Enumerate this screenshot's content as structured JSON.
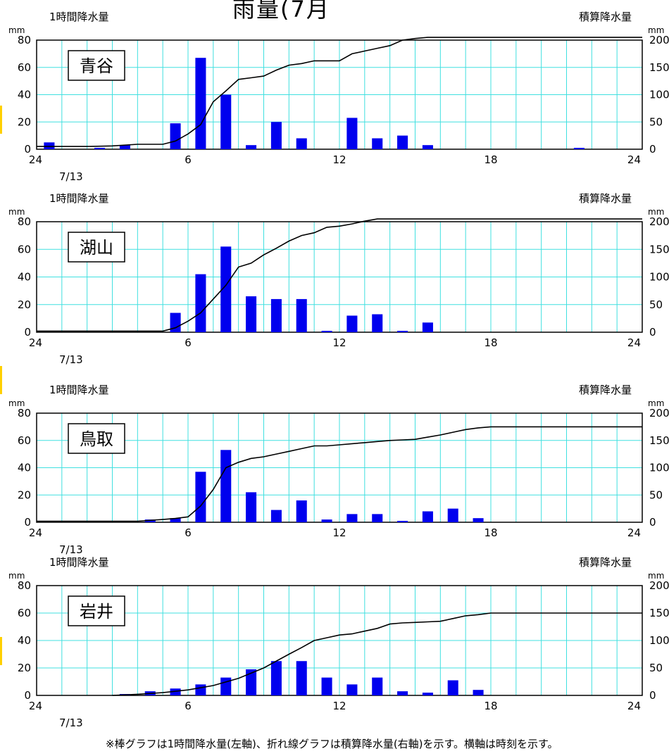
{
  "page_title": "雨量(7月",
  "footnote": "※棒グラフは1時間降水量(左軸)、折れ線グラフは積算降水量(右軸)を示す。横軸は時刻を示す。",
  "colors": {
    "bar": "#0000ee",
    "grid": "#40e0e0",
    "line": "#000000",
    "frame": "#000000"
  },
  "chart_data": [
    {
      "type": "bar",
      "title": "青谷",
      "left_label": "1時間降水量",
      "right_label": "積算降水量",
      "left_unit": "mm",
      "right_unit": "mm",
      "date_label": "7/13",
      "x_ticks": [
        "24",
        "6",
        "12",
        "18",
        "24"
      ],
      "y_left_ticks": [
        "0",
        "20",
        "40",
        "60",
        "80"
      ],
      "y_right_ticks": [
        "0",
        "50",
        "100",
        "150",
        "200"
      ],
      "ylim_left": [
        0,
        80
      ],
      "ylim_right": [
        0,
        200
      ],
      "xlim": [
        0,
        24
      ],
      "grid": true,
      "series": [
        {
          "name": "1時間降水量",
          "axis": "left",
          "x": [
            0.5,
            1,
            2,
            3,
            4,
            5,
            6,
            7,
            8,
            9,
            10,
            11,
            12,
            13,
            14,
            15,
            16,
            17,
            18,
            19,
            20,
            21,
            22,
            23
          ],
          "values": [
            5,
            0,
            0,
            1,
            3,
            0,
            19,
            67,
            40,
            3,
            20,
            8,
            0,
            23,
            8,
            10,
            3,
            0,
            0,
            0,
            0,
            0,
            1,
            0
          ]
        },
        {
          "name": "積算降水量",
          "axis": "right",
          "x": [
            0,
            1,
            2,
            3,
            4,
            5,
            5.5,
            6,
            6.5,
            7,
            7.5,
            8,
            8.5,
            9,
            9.5,
            10,
            10.5,
            11,
            11.5,
            12,
            12.5,
            13,
            13.5,
            14,
            14.5,
            15,
            15.5,
            16,
            24
          ],
          "values": [
            5,
            5,
            5,
            6,
            9,
            9,
            15,
            28,
            45,
            87,
            107,
            128,
            131,
            134,
            145,
            154,
            157,
            162,
            162,
            162,
            175,
            180,
            185,
            190,
            200,
            203,
            205,
            205,
            205
          ]
        }
      ]
    },
    {
      "type": "bar",
      "title": "湖山",
      "left_label": "1時間降水量",
      "right_label": "積算降水量",
      "left_unit": "mm",
      "right_unit": "mm",
      "date_label": "7/13",
      "x_ticks": [
        "24",
        "6",
        "12",
        "18",
        "24"
      ],
      "y_left_ticks": [
        "0",
        "20",
        "40",
        "60",
        "80"
      ],
      "y_right_ticks": [
        "0",
        "50",
        "100",
        "150",
        "200"
      ],
      "ylim_left": [
        0,
        80
      ],
      "ylim_right": [
        0,
        200
      ],
      "xlim": [
        0,
        24
      ],
      "grid": true,
      "series": [
        {
          "name": "1時間降水量",
          "axis": "left",
          "x": [
            1,
            2,
            3,
            4,
            5,
            6,
            7,
            8,
            9,
            10,
            11,
            12,
            13,
            14,
            15,
            16,
            17,
            18,
            19,
            20,
            21,
            22,
            23
          ],
          "values": [
            0,
            0,
            0,
            0,
            0,
            14,
            42,
            62,
            26,
            24,
            24,
            1,
            12,
            13,
            1,
            7,
            0,
            0,
            0,
            0,
            0,
            0,
            0
          ]
        },
        {
          "name": "積算降水量",
          "axis": "right",
          "x": [
            0,
            1,
            2,
            3,
            4,
            5,
            5.5,
            6,
            6.5,
            7,
            7.5,
            8,
            8.5,
            9,
            9.5,
            10,
            10.5,
            11,
            11.5,
            12,
            12.5,
            13,
            13.5,
            14,
            14.5,
            15,
            15.5,
            16,
            24
          ],
          "values": [
            2,
            2,
            2,
            2,
            2,
            2,
            8,
            20,
            35,
            60,
            85,
            118,
            125,
            140,
            152,
            165,
            175,
            180,
            190,
            192,
            196,
            201,
            205,
            210,
            210,
            215,
            218,
            218,
            218
          ]
        }
      ]
    },
    {
      "type": "bar",
      "title": "鳥取",
      "left_label": "1時間降水量",
      "right_label": "積算降水量",
      "left_unit": "mm",
      "right_unit": "mm",
      "date_label": "7/13",
      "x_ticks": [
        "24",
        "6",
        "12",
        "18",
        "24"
      ],
      "y_left_ticks": [
        "0",
        "20",
        "40",
        "60",
        "80"
      ],
      "y_right_ticks": [
        "0",
        "50",
        "100",
        "150",
        "200"
      ],
      "ylim_left": [
        0,
        80
      ],
      "ylim_right": [
        0,
        200
      ],
      "xlim": [
        0,
        24
      ],
      "grid": true,
      "series": [
        {
          "name": "1時間降水量",
          "axis": "left",
          "x": [
            1,
            2,
            3,
            4,
            5,
            6,
            7,
            8,
            9,
            10,
            11,
            12,
            13,
            14,
            15,
            16,
            17,
            18,
            19,
            20,
            21,
            22,
            23
          ],
          "values": [
            0,
            0,
            0,
            0,
            2,
            3,
            37,
            53,
            22,
            9,
            16,
            2,
            6,
            6,
            1,
            8,
            10,
            3,
            0,
            0,
            0,
            0,
            0
          ]
        },
        {
          "name": "積算降水量",
          "axis": "right",
          "x": [
            0,
            1,
            2,
            3,
            4,
            5,
            5.5,
            6,
            6.5,
            7,
            7.5,
            8,
            8.5,
            9,
            9.5,
            10,
            10.5,
            11,
            11.5,
            12,
            12.5,
            13,
            13.5,
            14,
            14.5,
            15,
            15.5,
            16,
            16.5,
            17,
            17.5,
            18,
            24
          ],
          "values": [
            2,
            2,
            2,
            2,
            2,
            5,
            7,
            10,
            30,
            60,
            100,
            110,
            117,
            120,
            125,
            130,
            135,
            140,
            140,
            142,
            144,
            146,
            148,
            150,
            151,
            152,
            156,
            160,
            165,
            170,
            173,
            175,
            175
          ]
        }
      ]
    },
    {
      "type": "bar",
      "title": "岩井",
      "left_label": "1時間降水量",
      "right_label": "積算降水量",
      "left_unit": "mm",
      "right_unit": "mm",
      "date_label": "7/13",
      "x_ticks": [
        "24",
        "6",
        "12",
        "18",
        "24"
      ],
      "y_left_ticks": [
        "0",
        "20",
        "40",
        "60",
        "80"
      ],
      "y_right_ticks": [
        "0",
        "50",
        "100",
        "150",
        "200"
      ],
      "ylim_left": [
        0,
        80
      ],
      "ylim_right": [
        0,
        200
      ],
      "xlim": [
        0,
        24
      ],
      "grid": true,
      "series": [
        {
          "name": "1時間降水量",
          "axis": "left",
          "x": [
            1,
            2,
            3,
            4,
            5,
            6,
            7,
            8,
            9,
            10,
            11,
            12,
            13,
            14,
            15,
            16,
            17,
            18,
            19,
            20,
            21,
            22,
            23
          ],
          "values": [
            0,
            0,
            0,
            1,
            3,
            5,
            8,
            13,
            19,
            25,
            25,
            13,
            8,
            13,
            3,
            2,
            11,
            4,
            0,
            0,
            0,
            0,
            0
          ]
        },
        {
          "name": "積算降水量",
          "axis": "right",
          "x": [
            3,
            4,
            5,
            6,
            7,
            8,
            9,
            10,
            10.5,
            11,
            11.5,
            12,
            12.5,
            13,
            13.5,
            14,
            14.5,
            15,
            15.5,
            16,
            16.5,
            17,
            17.5,
            18,
            24
          ],
          "values": [
            0,
            2,
            5,
            10,
            18,
            31,
            50,
            75,
            87,
            100,
            105,
            110,
            112,
            117,
            122,
            130,
            132,
            133,
            134,
            135,
            140,
            145,
            147,
            150,
            150
          ]
        }
      ]
    }
  ]
}
